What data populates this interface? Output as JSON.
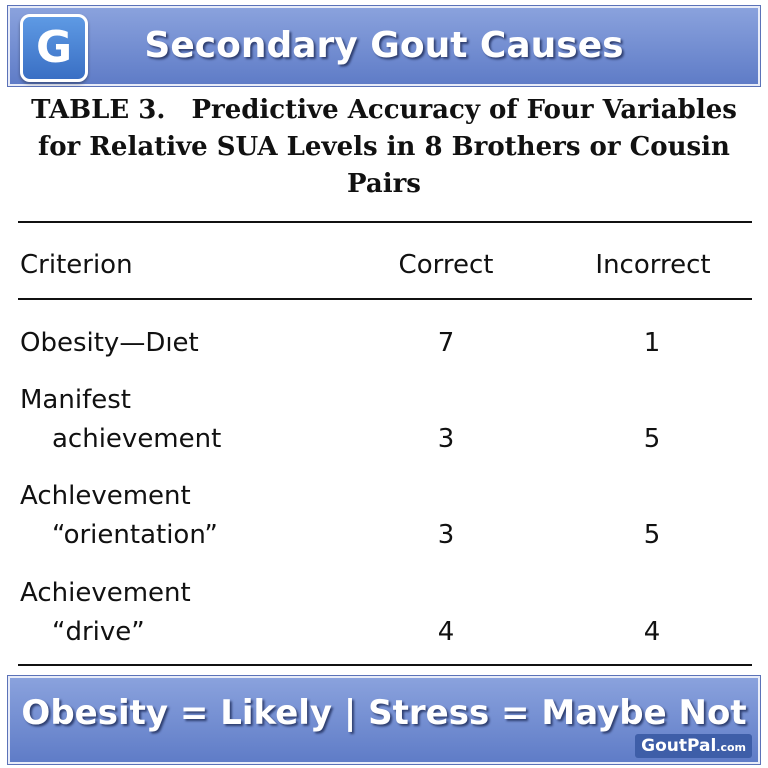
{
  "header": {
    "logo_letter": "G",
    "title": "Secondary Gout Causes"
  },
  "document": {
    "table_label": "TABLE 3.",
    "table_title_line1": "Predictive Accuracy of Four Variables",
    "table_title_line2": "for Relative SUA Levels in 8 Brothers or Cousin",
    "table_title_line3": "Pairs"
  },
  "table": {
    "columns": [
      "Criterion",
      "Correct",
      "Incorrect"
    ],
    "rows": [
      {
        "criterion": [
          "Obesity—Dıet"
        ],
        "correct": "7",
        "incorrect": "1"
      },
      {
        "criterion": [
          "Manifest",
          "achievement"
        ],
        "correct": "3",
        "incorrect": "5"
      },
      {
        "criterion": [
          "Achlevement",
          "“orientation”"
        ],
        "correct": "3",
        "incorrect": "5"
      },
      {
        "criterion": [
          "Achievement",
          "“drive”"
        ],
        "correct": "4",
        "incorrect": "4"
      }
    ]
  },
  "footer": {
    "slogan": "Obesity = Likely | Stress = Maybe Not",
    "brand": "GoutPal",
    "brand_suffix": ".com"
  },
  "colors": {
    "banner": "#7590d6",
    "banner_dark": "#5f7cc7",
    "text": "#111111"
  }
}
